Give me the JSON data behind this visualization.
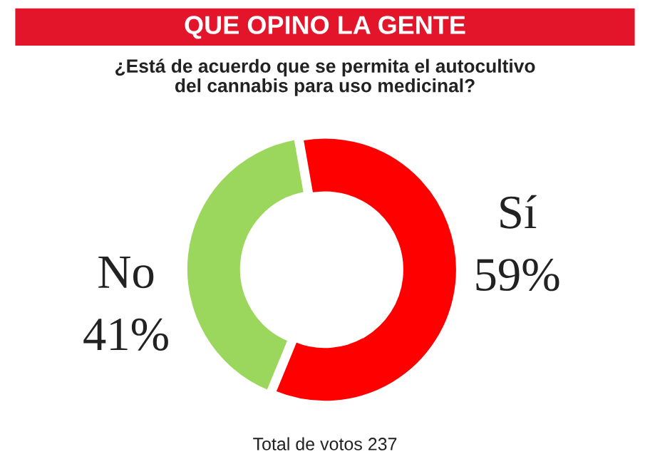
{
  "chart_data": {
    "type": "donut",
    "title": "QUE OPINO LA GENTE",
    "subtitle": "¿Está de acuerdo que se permita el autocultivo\ndel cannabis para uso medicinal?",
    "categories": [
      "Sí",
      "No"
    ],
    "values": [
      59,
      41
    ],
    "colors": [
      "#fe0000",
      "#9ad75c"
    ],
    "value_labels": [
      "59%",
      "41%"
    ],
    "annotations": [
      "Total de votos 237"
    ]
  }
}
